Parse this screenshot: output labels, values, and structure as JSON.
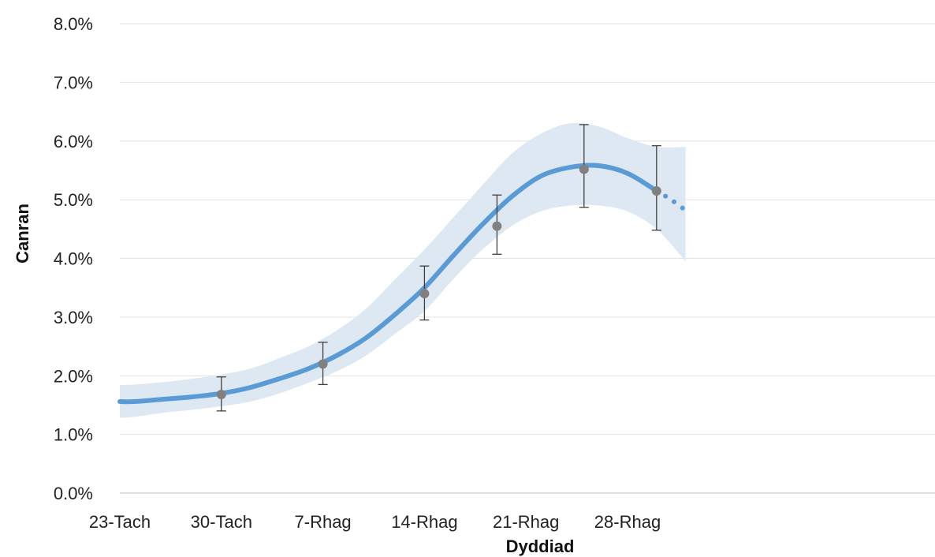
{
  "chart_data": {
    "type": "line",
    "xlabel": "Dyddiad",
    "ylabel": "Canran",
    "x_ticks": [
      "23-Tach",
      "30-Tach",
      "7-Rhag",
      "14-Rhag",
      "21-Rhag",
      "28-Rhag"
    ],
    "y_ticks": [
      "0.0%",
      "1.0%",
      "2.0%",
      "3.0%",
      "4.0%",
      "5.0%",
      "6.0%",
      "7.0%",
      "8.0%"
    ],
    "ylim": [
      0,
      8
    ],
    "grid": "horizontal",
    "legend": "none",
    "series": [
      {
        "role": "estimate",
        "style": "solid",
        "color": "#5b9bd5",
        "x": [
          "23-Tach",
          "24-Tach",
          "26-Tach",
          "28-Tach",
          "30-Tach",
          "2-Rhag",
          "4-Rhag",
          "6-Rhag",
          "8-Rhag",
          "10-Rhag",
          "12-Rhag",
          "14-Rhag",
          "16-Rhag",
          "18-Rhag",
          "20-Rhag",
          "22-Rhag",
          "24-Rhag",
          "26-Rhag",
          "28-Rhag",
          "30-Rhag"
        ],
        "values": [
          1.56,
          1.56,
          1.6,
          1.64,
          1.7,
          1.8,
          1.95,
          2.12,
          2.35,
          2.65,
          3.05,
          3.5,
          4.05,
          4.58,
          5.05,
          5.4,
          5.55,
          5.58,
          5.45,
          5.15
        ]
      },
      {
        "role": "projection",
        "style": "dotted",
        "color": "#5b9bd5",
        "x": [
          "30-Rhag",
          "31-Rhag",
          "1-Ion"
        ],
        "values": [
          5.15,
          5.0,
          4.82
        ]
      }
    ],
    "confidence_band": {
      "color": "#dde8f2",
      "x": [
        "23-Tach",
        "24-Tach",
        "26-Tach",
        "28-Tach",
        "30-Tach",
        "2-Rhag",
        "4-Rhag",
        "6-Rhag",
        "8-Rhag",
        "10-Rhag",
        "12-Rhag",
        "14-Rhag",
        "16-Rhag",
        "18-Rhag",
        "20-Rhag",
        "22-Rhag",
        "24-Rhag",
        "26-Rhag",
        "28-Rhag",
        "30-Rhag",
        "1-Ion"
      ],
      "lower": [
        1.28,
        1.3,
        1.37,
        1.42,
        1.48,
        1.56,
        1.7,
        1.88,
        2.08,
        2.35,
        2.72,
        3.1,
        3.65,
        4.15,
        4.55,
        4.8,
        4.9,
        4.9,
        4.8,
        4.5,
        3.95
      ],
      "upper": [
        1.84,
        1.85,
        1.89,
        1.95,
        2.02,
        2.12,
        2.3,
        2.5,
        2.78,
        3.15,
        3.65,
        4.15,
        4.7,
        5.25,
        5.78,
        6.12,
        6.3,
        6.25,
        6.05,
        5.9,
        5.9
      ]
    },
    "observations": {
      "color": "#808080",
      "x": [
        "30-Tach",
        "7-Rhag",
        "14-Rhag",
        "19-Rhag",
        "25-Rhag",
        "30-Rhag"
      ],
      "values": [
        1.68,
        2.2,
        3.4,
        4.55,
        5.52,
        5.15
      ],
      "lower": [
        1.4,
        1.85,
        2.95,
        4.07,
        4.87,
        4.48
      ],
      "upper": [
        1.98,
        2.57,
        3.87,
        5.08,
        6.28,
        5.92
      ]
    }
  }
}
